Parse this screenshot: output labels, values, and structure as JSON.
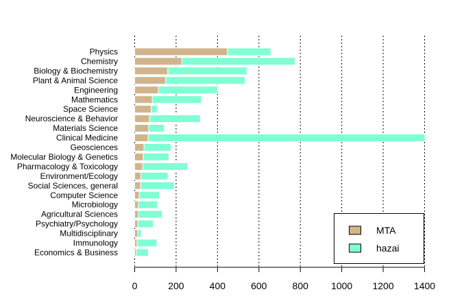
{
  "chart_data": {
    "type": "bar",
    "orientation": "horizontal",
    "stacked": true,
    "categories": [
      "Physics",
      "Chemistry",
      "Biology & Biochemistry",
      "Plant & Animal Science",
      "Engineering",
      "Mathematics",
      "Space Science",
      "Neuroscience & Behavior",
      "Materials Science",
      "Clinical Medicine",
      "Geosciences",
      "Molecular Biology & Genetics",
      "Pharmacology & Toxicology",
      "Environment/Ecology",
      "Social Sciences, general",
      "Computer Science",
      "Microbiology",
      "Agricultural Sciences",
      "Psychiatry/Psychology",
      "Multidisciplinary",
      "Immunology",
      "Economics & Business"
    ],
    "series": [
      {
        "name": "MTA",
        "color": "#d2b48c",
        "values": [
          448,
          228,
          160,
          150,
          115,
          85,
          80,
          72,
          68,
          65,
          45,
          42,
          38,
          30,
          28,
          22,
          18,
          18,
          15,
          15,
          12,
          8
        ]
      },
      {
        "name": "hazai",
        "color": "#7fffd4",
        "values": [
          210,
          547,
          382,
          383,
          285,
          238,
          30,
          245,
          75,
          1337,
          130,
          123,
          218,
          130,
          163,
          98,
          92,
          115,
          75,
          17,
          95,
          58
        ]
      }
    ],
    "xlim": [
      0,
      1400
    ],
    "xticks": [
      0,
      200,
      400,
      600,
      800,
      1000,
      1200,
      1400
    ],
    "grid": "vertical dotted",
    "legend": {
      "position": "bottom-right",
      "entries": [
        "MTA",
        "hazai"
      ]
    },
    "title": "",
    "xlabel": "",
    "ylabel": ""
  }
}
